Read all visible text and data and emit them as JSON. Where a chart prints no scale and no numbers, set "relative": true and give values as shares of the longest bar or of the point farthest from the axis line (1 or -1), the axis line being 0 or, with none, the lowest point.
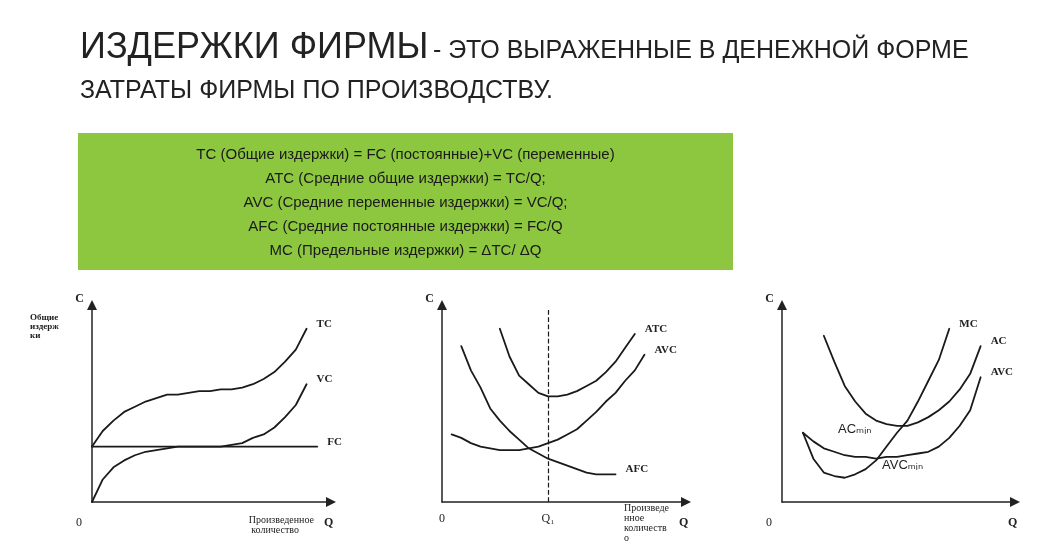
{
  "chart_data": [
    {
      "type": "other",
      "title": "ИЗДЕРЖКИ ФИРМЫ",
      "subtitle": "- ЭТО ВЫРАЖЕННЫЕ В ДЕНЕЖНОЙ ФОРМЕ ЗАТРАТЫ ФИРМЫ ПО ПРОИЗВОДСТВУ.",
      "annotations": [
        "TC (Общие издержки) = FC (постоянные)+VC (переменные)",
        "ATC (Средние общие издержки) = TC/Q;",
        "AVC (Средние переменные издержки) = VC/Q;",
        "AFC (Средние постоянные издержки) = FC/Q",
        "MC (Предельные издержки) = ΔTC/ ΔQ"
      ]
    },
    {
      "type": "line",
      "relative": true,
      "xlabel": "Q",
      "ylabel": "C",
      "grid": false,
      "legend": false,
      "marker": "none",
      "annotations": [
        "Произведенное количество",
        "Общие издержки",
        "0"
      ],
      "categories": [
        null,
        null,
        null,
        null,
        null,
        null,
        null,
        null,
        null,
        null,
        null,
        null,
        null,
        null,
        null,
        null,
        null,
        null,
        null,
        null,
        null,
        null,
        null
      ],
      "series": [
        {
          "name": "TC",
          "color": "#1a1a1a",
          "values": [
            0.32,
            0.41,
            0.47,
            0.52,
            0.55,
            0.58,
            0.6,
            0.62,
            0.62,
            0.63,
            0.64,
            0.64,
            0.65,
            0.65,
            0.66,
            0.68,
            0.71,
            0.75,
            0.81,
            0.88,
            1,
            null,
            null
          ]
        },
        {
          "name": "VC",
          "color": "#1a1a1a",
          "values": [
            0,
            0.13,
            0.2,
            0.24,
            0.27,
            0.29,
            0.3,
            0.31,
            0.32,
            0.32,
            0.32,
            0.32,
            0.32,
            0.33,
            0.34,
            0.37,
            0.39,
            0.43,
            0.49,
            0.56,
            0.68,
            null,
            null
          ]
        },
        {
          "name": "FC",
          "color": "#1a1a1a",
          "values": [
            0.32,
            0.32,
            0.32,
            0.32,
            0.32,
            0.32,
            0.32,
            0.32,
            0.32,
            0.32,
            0.32,
            0.32,
            0.32,
            0.32,
            0.32,
            0.32,
            0.32,
            0.32,
            0.32,
            0.32,
            0.32,
            0.32,
            null
          ]
        }
      ]
    },
    {
      "type": "line",
      "relative": true,
      "xlabel": "Q",
      "ylabel": "C",
      "grid": false,
      "legend": false,
      "marker": "none",
      "annotations": [
        "Произведенное количество"
      ],
      "categories": [
        "0",
        null,
        null,
        null,
        null,
        null,
        null,
        null,
        null,
        null,
        null,
        "Q₁",
        null,
        null,
        null,
        null,
        null,
        null,
        null,
        null,
        null,
        null,
        null,
        null,
        null,
        null
      ],
      "ref_lines": [
        {
          "axis": "x",
          "value": "Q₁",
          "line_style": "dashed",
          "color": "#1a1a1a"
        }
      ],
      "series": [
        {
          "name": "ATC",
          "color": "#1a1a1a",
          "values": [
            null,
            null,
            null,
            null,
            null,
            null,
            1,
            0.84,
            0.73,
            0.68,
            0.63,
            0.61,
            0.61,
            0.62,
            0.64,
            0.67,
            0.7,
            0.75,
            0.81,
            0.89,
            0.97,
            null,
            null,
            null,
            null,
            null
          ]
        },
        {
          "name": "AVC",
          "color": "#1a1a1a",
          "values": [
            null,
            0.39,
            0.37,
            0.34,
            0.32,
            0.31,
            0.3,
            0.3,
            0.3,
            0.31,
            0.32,
            0.34,
            0.36,
            0.39,
            0.42,
            0.47,
            0.52,
            0.58,
            0.63,
            0.7,
            0.76,
            0.85,
            null,
            null,
            null,
            null
          ]
        },
        {
          "name": "AFC",
          "color": "#1a1a1a",
          "values": [
            null,
            null,
            0.9,
            0.76,
            0.66,
            0.54,
            0.47,
            0.41,
            0.36,
            0.31,
            0.28,
            0.25,
            0.23,
            0.21,
            0.19,
            0.17,
            0.16,
            0.16,
            0.16,
            null,
            null,
            null,
            null,
            null,
            null,
            null
          ]
        }
      ]
    },
    {
      "type": "line",
      "relative": true,
      "xlabel": "Q",
      "ylabel": "C",
      "grid": false,
      "legend": false,
      "marker": "none",
      "annotations": [
        "ACₘᵢₙ",
        "AVCₘᵢₙ",
        "0"
      ],
      "categories": [
        null,
        null,
        null,
        null,
        null,
        null,
        null,
        null,
        null,
        null,
        null,
        null,
        null,
        null,
        null,
        null,
        null,
        null,
        null,
        null,
        null,
        null,
        null
      ],
      "series": [
        {
          "name": "MC",
          "color": "#1a1a1a",
          "values": [
            null,
            null,
            0.4,
            0.25,
            0.17,
            0.15,
            0.14,
            0.16,
            0.19,
            0.24,
            0.32,
            0.4,
            0.47,
            0.58,
            0.7,
            0.82,
            1,
            null,
            null,
            null,
            null,
            null,
            null
          ]
        },
        {
          "name": "AC",
          "color": "#1a1a1a",
          "values": [
            null,
            null,
            null,
            null,
            0.96,
            0.81,
            0.67,
            0.58,
            0.51,
            0.47,
            0.45,
            0.44,
            0.44,
            0.46,
            0.49,
            0.53,
            0.58,
            0.65,
            0.74,
            0.9,
            null,
            null,
            null
          ]
        },
        {
          "name": "AVC",
          "color": "#1a1a1a",
          "values": [
            null,
            null,
            0.4,
            0.35,
            0.31,
            0.29,
            0.27,
            0.26,
            0.26,
            0.25,
            0.26,
            0.26,
            0.27,
            0.28,
            0.29,
            0.32,
            0.37,
            0.44,
            0.53,
            0.72,
            null,
            null,
            null
          ]
        }
      ]
    }
  ]
}
